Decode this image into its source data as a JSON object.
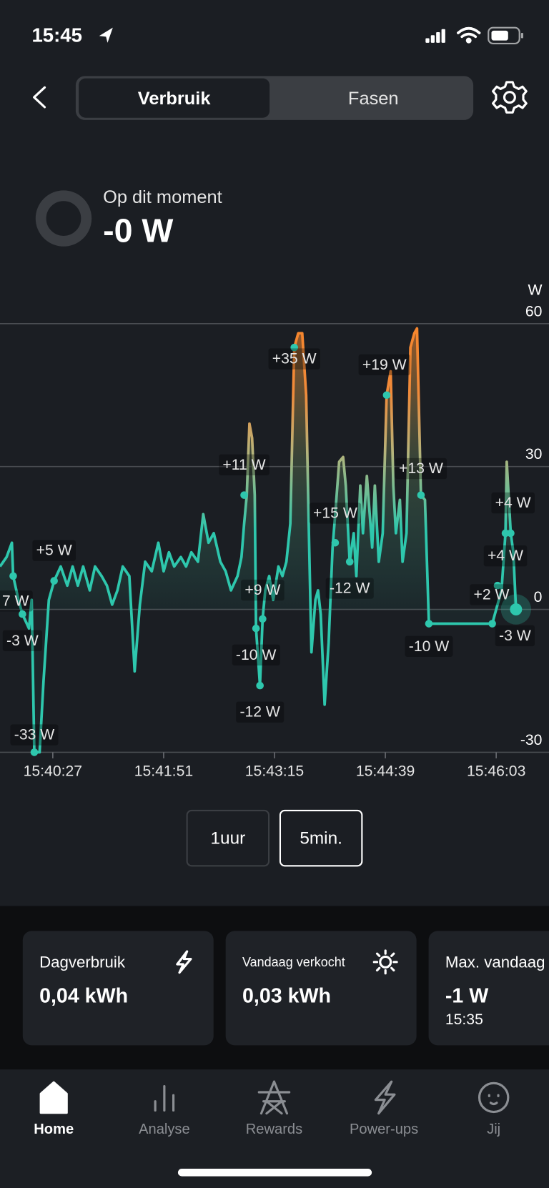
{
  "status_bar": {
    "time": "15:45"
  },
  "tabs": [
    "Verbruik",
    "Fasen"
  ],
  "current": {
    "label": "Op dit moment",
    "value": "-0 W"
  },
  "chart_data": {
    "type": "line",
    "y_unit": "W",
    "x": [
      "15:39:47",
      "15:39:52",
      "15:39:56",
      "15:39:57",
      "15:40:01",
      "15:40:04",
      "15:40:09",
      "15:40:11",
      "15:40:13",
      "15:40:17",
      "15:40:20",
      "15:40:24",
      "15:40:28",
      "15:40:33",
      "15:40:38",
      "15:40:42",
      "15:40:46",
      "15:40:50",
      "15:40:55",
      "15:40:59",
      "15:41:04",
      "15:41:08",
      "15:41:12",
      "15:41:16",
      "15:41:20",
      "15:41:25",
      "15:41:29",
      "15:41:33",
      "15:41:37",
      "15:41:42",
      "15:41:47",
      "15:41:51",
      "15:41:55",
      "15:41:59",
      "15:42:04",
      "15:42:08",
      "15:42:12",
      "15:42:17",
      "15:42:21",
      "15:42:25",
      "15:42:29",
      "15:42:34",
      "15:42:38",
      "15:42:42",
      "15:42:47",
      "15:42:50",
      "15:42:52",
      "15:42:54",
      "15:42:56",
      "15:42:58",
      "15:43:00",
      "15:43:01",
      "15:43:04",
      "15:43:06",
      "15:43:08",
      "15:43:11",
      "15:43:14",
      "15:43:18",
      "15:43:21",
      "15:43:24",
      "15:43:27",
      "15:43:30",
      "15:43:33",
      "15:43:36",
      "15:43:39",
      "15:43:41",
      "15:43:43",
      "15:43:46",
      "15:43:48",
      "15:43:50",
      "15:43:53",
      "15:43:56",
      "15:43:59",
      "15:44:01",
      "15:44:04",
      "15:44:07",
      "15:44:09",
      "15:44:12",
      "15:44:15",
      "15:44:17",
      "15:44:20",
      "15:44:22",
      "15:44:25",
      "15:44:29",
      "15:44:31",
      "15:44:34",
      "15:44:37",
      "15:44:40",
      "15:44:43",
      "15:44:45",
      "15:44:47",
      "15:44:50",
      "15:44:52",
      "15:44:55",
      "15:44:58",
      "15:45:01",
      "15:45:03",
      "15:45:06",
      "15:45:09",
      "15:45:12",
      "15:46:00",
      "15:46:04",
      "15:46:07",
      "15:46:10",
      "15:46:11",
      "15:46:14",
      "15:46:16",
      "15:46:18"
    ],
    "values": [
      9,
      11,
      14,
      7,
      2,
      -1,
      -4,
      2,
      -30,
      -30,
      -15,
      2,
      6,
      9,
      5,
      9,
      5,
      9,
      4,
      9,
      7,
      5,
      1,
      4,
      9,
      7,
      -13,
      1,
      10,
      8,
      14,
      8,
      12,
      9,
      11,
      9,
      12,
      10,
      20,
      14,
      16,
      10,
      8,
      4,
      7,
      11,
      18,
      24,
      39,
      36,
      24,
      -4,
      -16,
      -2,
      4,
      7,
      2,
      9,
      7,
      10,
      18,
      55,
      58,
      58,
      45,
      17,
      -9,
      2,
      4,
      -1,
      -20,
      -7,
      13,
      20,
      31,
      32,
      26,
      10,
      16,
      7,
      26,
      16,
      28,
      13,
      26,
      10,
      16,
      45,
      50,
      26,
      16,
      23,
      10,
      16,
      55,
      58,
      59,
      24,
      23,
      -3,
      -3,
      1,
      4,
      16,
      31,
      16,
      12,
      0
    ],
    "color": "#2ec7ad",
    "high_color": "#f5862e",
    "xlim": [
      "15:39:47",
      "15:46:43"
    ],
    "xticks": [
      "15:40:27",
      "15:41:51",
      "15:43:15",
      "15:44:39",
      "15:46:03"
    ],
    "ylim": [
      -30,
      60
    ],
    "yticks": [
      60,
      30,
      0,
      -30
    ],
    "grid": true,
    "annotations": [
      {
        "x": "15:40:28",
        "y": 6,
        "label": "+5 W"
      },
      {
        "x": "15:39:57",
        "y": 7,
        "label": "7 W"
      },
      {
        "x": "15:40:04",
        "y": -1,
        "label": "-3 W"
      },
      {
        "x": "15:40:13",
        "y": -30,
        "label": "-33 W"
      },
      {
        "x": "15:42:52",
        "y": 24,
        "label": "+11 W"
      },
      {
        "x": "15:43:06",
        "y": -2,
        "label": "+9 W"
      },
      {
        "x": "15:43:01",
        "y": -4,
        "label": "-10 W"
      },
      {
        "x": "15:43:04",
        "y": -16,
        "label": "-12 W"
      },
      {
        "x": "15:43:30",
        "y": 55,
        "label": "+35 W"
      },
      {
        "x": "15:44:01",
        "y": 14,
        "label": "+15 W"
      },
      {
        "x": "15:44:12",
        "y": 10,
        "label": "-12 W"
      },
      {
        "x": "15:44:40",
        "y": 45,
        "label": "+19 W"
      },
      {
        "x": "15:45:06",
        "y": 24,
        "label": "+13 W"
      },
      {
        "x": "15:45:12",
        "y": -3,
        "label": "-10 W"
      },
      {
        "x": "15:46:04",
        "y": 5,
        "label": "+2 W"
      },
      {
        "x": "15:46:10",
        "y": 16,
        "label": "+4 W"
      },
      {
        "x": "15:46:14",
        "y": 16,
        "label": "+4 W"
      },
      {
        "x": "15:46:00",
        "y": -3,
        "label": "-3 W"
      }
    ]
  },
  "ranges": [
    "1uur",
    "5min."
  ],
  "cards": [
    {
      "title": "Dagverbruik",
      "value": "0,04 kWh"
    },
    {
      "title": "Vandaag verkocht",
      "value": "0,03 kWh"
    },
    {
      "title": "Max. vandaag",
      "value": "-1 W",
      "sub": "15:35"
    }
  ],
  "nav": [
    "Home",
    "Analyse",
    "Rewards",
    "Power-ups",
    "Jij"
  ]
}
